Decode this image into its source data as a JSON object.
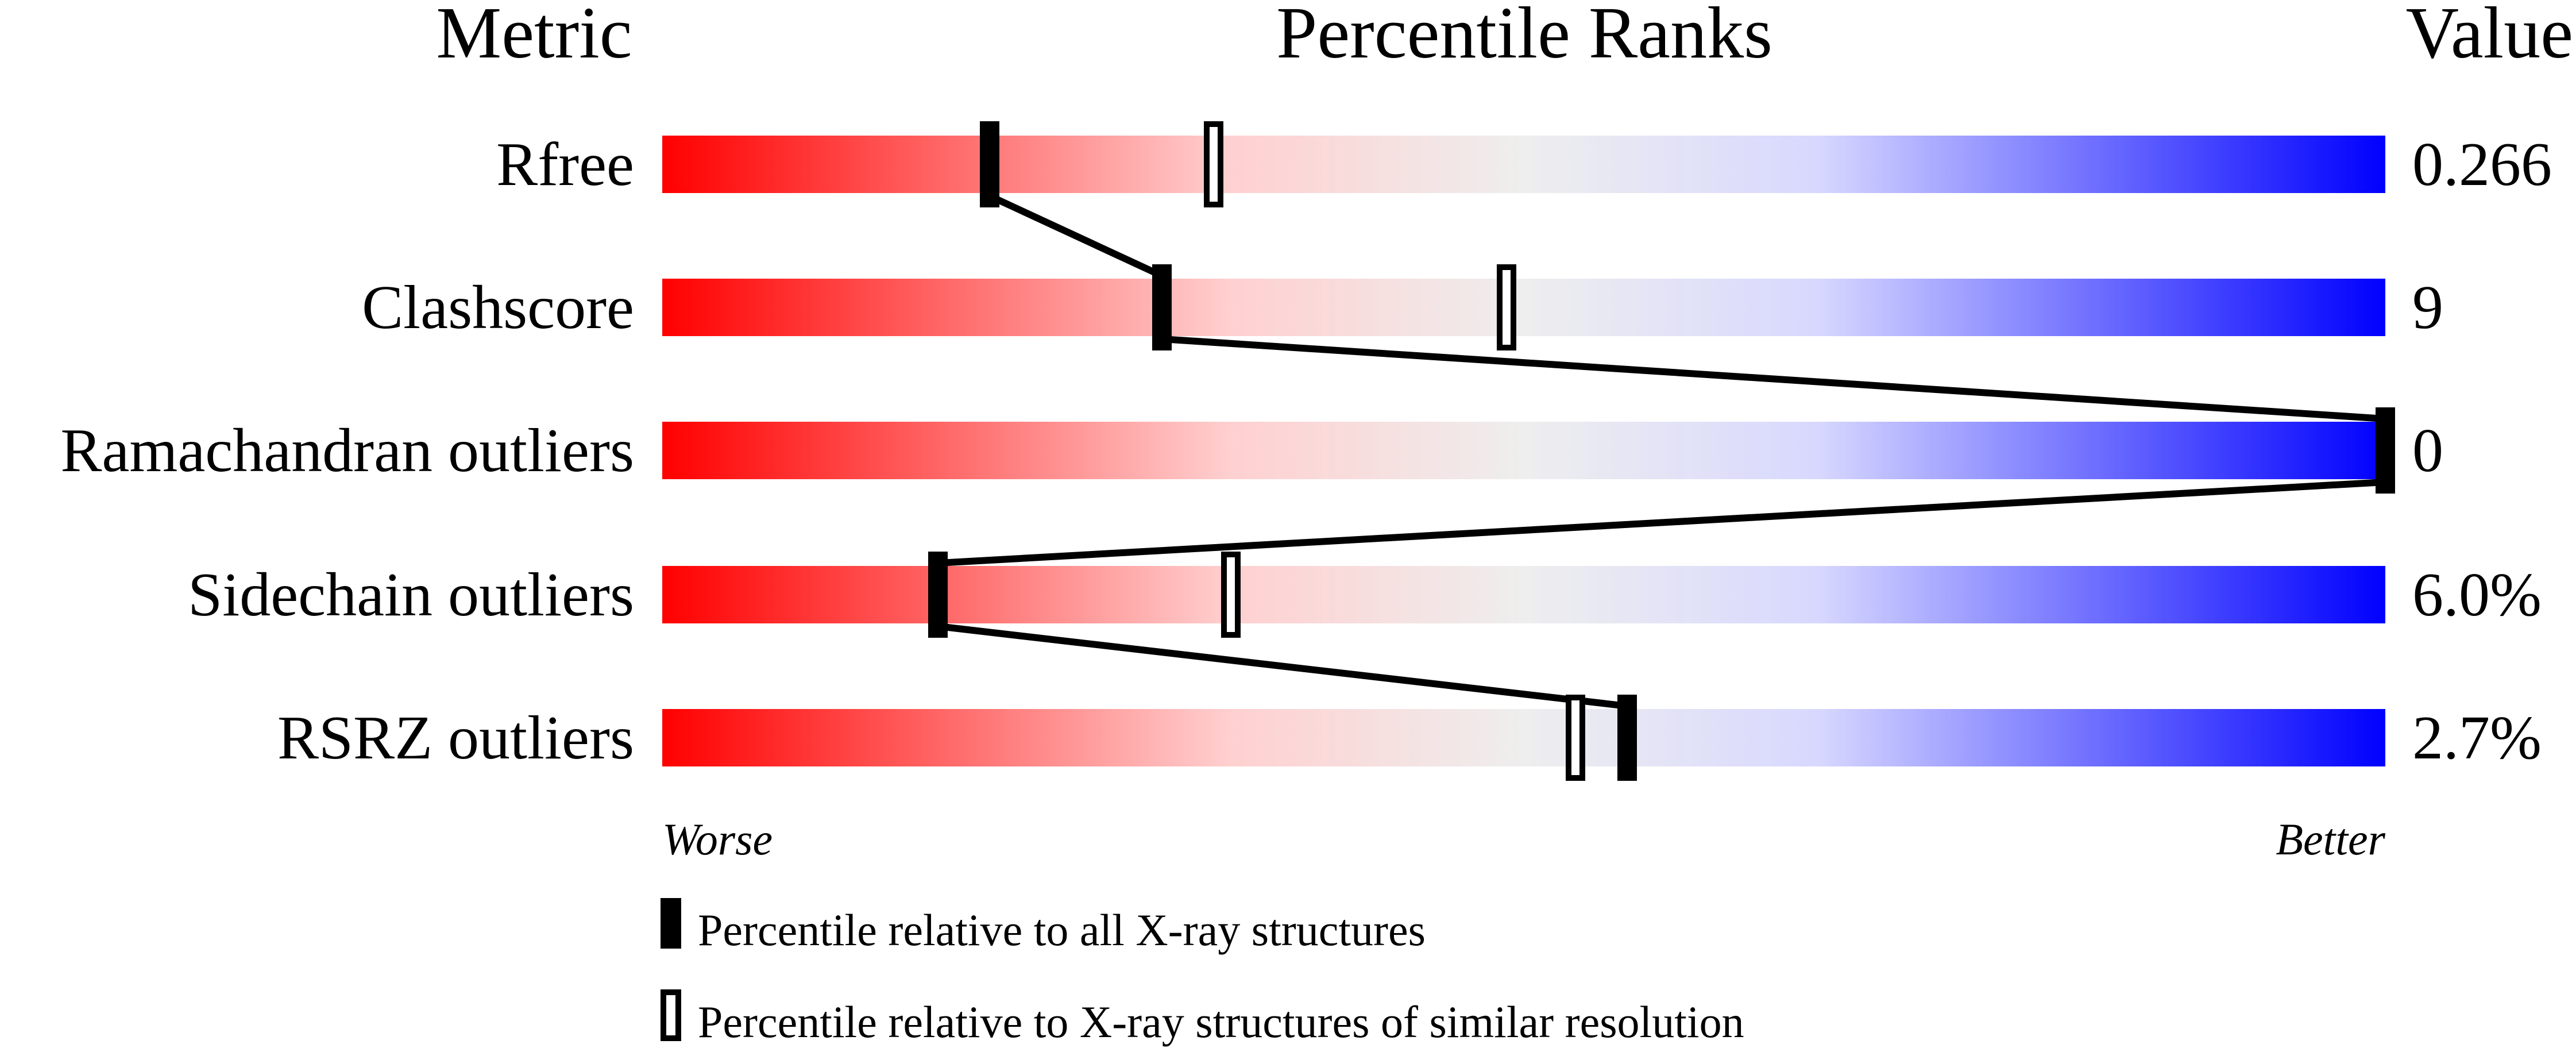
{
  "chart_data": {
    "type": "percentile-slider",
    "headers": {
      "metric": "Metric",
      "ranks": "Percentile Ranks",
      "value": "Value"
    },
    "xlim": [
      0,
      100
    ],
    "axis_labels": {
      "left": "Worse",
      "right": "Better"
    },
    "gradient_colors": [
      "#ff0000",
      "#ffd0d0",
      "#eeeeee",
      "#d8d8ff",
      "#0000ff"
    ],
    "rows": [
      {
        "metric": "Rfree",
        "value": "0.266",
        "percentile_all": 19,
        "percentile_similar": 32
      },
      {
        "metric": "Clashscore",
        "value": "9",
        "percentile_all": 29,
        "percentile_similar": 49
      },
      {
        "metric": "Ramachandran outliers",
        "value": "0",
        "percentile_all": 100,
        "percentile_similar": 100
      },
      {
        "metric": "Sidechain outliers",
        "value": "6.0%",
        "percentile_all": 16,
        "percentile_similar": 33
      },
      {
        "metric": "RSRZ outliers",
        "value": "2.7%",
        "percentile_all": 56,
        "percentile_similar": 53
      }
    ],
    "legend": [
      {
        "marker": "filled",
        "label": "Percentile relative to all X-ray structures"
      },
      {
        "marker": "open",
        "label": "Percentile relative to X-ray structures of similar resolution"
      }
    ]
  }
}
